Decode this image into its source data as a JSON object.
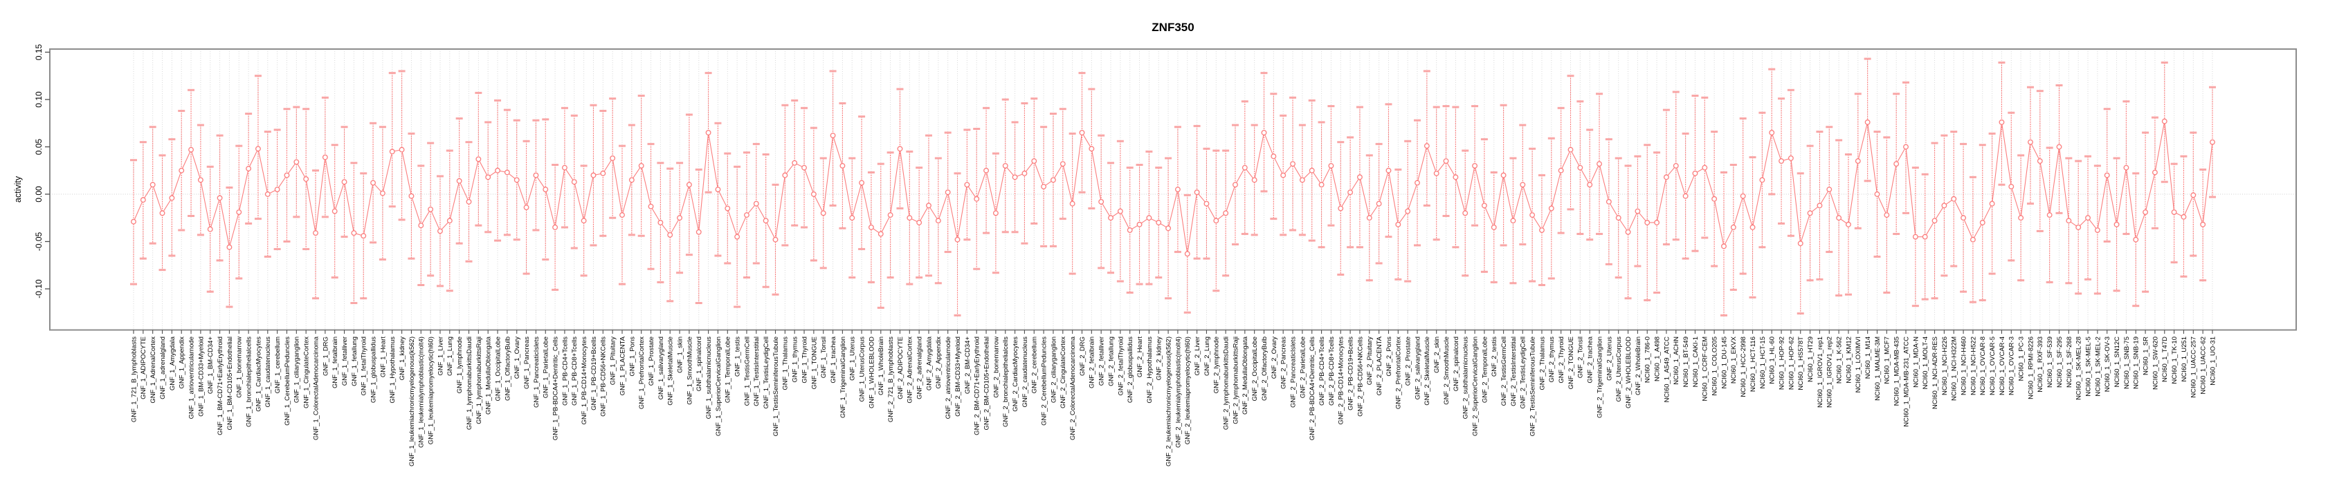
{
  "title": "ZNF350",
  "ylabel": "activity",
  "colors": {
    "series": "#FB7D7D",
    "cap": "#F9A6A6",
    "grid": "#D6D6D6",
    "zero_line": "#CFCFCF",
    "border": "#8C8C8C",
    "tick": "#4D4D4D",
    "text": "#000000",
    "background": "#FFFFFF"
  },
  "chart_data": {
    "type": "line",
    "subtype": "pointrange-errorbar",
    "title": "ZNF350",
    "xlabel": "",
    "ylabel": "activity",
    "legend": "none",
    "grid": "vertical-dotted-per-category, dotted-zero-line",
    "ylim": [
      -0.145,
      0.152
    ],
    "yticks": [
      0.15,
      0.1,
      0.05,
      0.0,
      -0.05,
      -0.1
    ],
    "ytick_labels": [
      "0.15",
      "0.10",
      "0.05",
      "0.00",
      "-0.05",
      "-0.10"
    ],
    "categories": [
      "GNF_1_721_B_lymphoblasts",
      "GNF_1_ADIPOCYTE",
      "GNF_1_AdrenalCortex",
      "GNF_1_adrenalgland",
      "GNF_1_Amygdala",
      "GNF_1_Appendix",
      "GNF_1_atrioventricularnode",
      "GNF_1_BM-CD33+Myeloid",
      "GNF_1_BM-CD34+",
      "GNF_1_BM-CD71+EarlyErythroid",
      "GNF_1_BM-CD105+Endothelial",
      "GNF_1_bonemarrow",
      "GNF_1_bronchialepithelialcells",
      "GNF_1_CardiacMyocytes",
      "GNF_1_caudatenucleus",
      "GNF_1_cerebellum",
      "GNF_1_CerebellumPeduncles",
      "GNF_1_ciliaryganglion",
      "GNF_1_CingulateCortex",
      "GNF_1_ColorectalAdenocarcinoma",
      "GNF_1_DRG",
      "GNF_1_fetalbrain",
      "GNF_1_fetalliver",
      "GNF_1_fetallung",
      "GNF_1_fetalThyroid",
      "GNF_1_globuspallidus",
      "GNF_1_Heart",
      "GNF_1_Hypothalamus",
      "GNF_1_kidney",
      "GNF_1_leukemiachronicmyelogenous(k562)",
      "GNF_1_leukemialymphoblastic(molt4)",
      "GNF_1_leukemiapromyelocytic(hl60)",
      "GNF_1_Liver",
      "GNF_1_Lung",
      "GNF_1_lymphnode",
      "GNF_1_lymphomaburkittsDaudi",
      "GNF_1_lymphomaburkittsRaji",
      "GNF_1_MedullaOblongata",
      "GNF_1_OccipitalLobe",
      "GNF_1_OlfactoryBulb",
      "GNF_1_Ovary",
      "GNF_1_Pancreas",
      "GNF_1_PancreaticIslets",
      "GNF_1_ParietalLobe",
      "GNF_1_PB-BDCA4+Dentritic_Cells",
      "GNF_1_PB-CD4+Tcells",
      "GNF_1_PB-CD8+Tcells",
      "GNF_1_PB-CD14+Monocytes",
      "GNF_1_PB-CD19+Bcells",
      "GNF_1_PB-CD56+NKCells",
      "GNF_1_Pituitary",
      "GNF_1_PLACENTA",
      "GNF_1_Pons",
      "GNF_1_PrefrontalCortex",
      "GNF_1_Prostate",
      "GNF_1_salivarygland",
      "GNF_1_SkeletalMuscle",
      "GNF_1_skin",
      "GNF_1_SmoothMuscle",
      "GNF_1_spinalcord",
      "GNF_1_subthalamicnucleus",
      "GNF_1_SuperiorCervicalGanglion",
      "GNF_1_TemporalLobe",
      "GNF_1_testis",
      "GNF_1_TestisGermCell",
      "GNF_1_TestisInterstitial",
      "GNF_1_TestisLeydigCell",
      "GNF_1_TestisSeminiferousTubule",
      "GNF_1_Thalamus",
      "GNF_1_thymus",
      "GNF_1_Thyroid",
      "GNF_1_TONGUE",
      "GNF_1_Tonsil",
      "GNF_1_trachea",
      "GNF_1_TrigeminalGanglion",
      "GNF_1_Uterus",
      "GNF_1_UterusCorpus",
      "GNF_1_WHOLEBLOOD",
      "GNF_1_WholeBrain",
      "GNF_2_721_B_lymphoblasts",
      "GNF_2_ADIPOCYTE",
      "GNF_2_AdrenalCortex",
      "GNF_2_adrenalgland",
      "GNF_2_Amygdala",
      "GNF_2_Appendix",
      "GNF_2_atrioventricularnode",
      "GNF_2_BM-CD33+Myeloid",
      "GNF_2_BM-CD34+",
      "GNF_2_BM-CD71+EarlyErythroid",
      "GNF_2_BM-CD105+Endothelial",
      "GNF_2_bonemarrow",
      "GNF_2_bronchialepithelialcells",
      "GNF_2_CardiacMyocytes",
      "GNF_2_caudatenucleus",
      "GNF_2_cerebellum",
      "GNF_2_CerebellumPeduncles",
      "GNF_2_ciliaryganglion",
      "GNF_2_CingulateCortex",
      "GNF_2_ColorectalAdenocarcinoma",
      "GNF_2_DRG",
      "GNF_2_fetalbrain",
      "GNF_2_fetalliver",
      "GNF_2_fetallung",
      "GNF_2_fetalThyroid",
      "GNF_2_globuspallidus",
      "GNF_2_Heart",
      "GNF_2_Hypothalamus",
      "GNF_2_kidney",
      "GNF_2_leukemiachronicmyelogenous(k562)",
      "GNF_2_leukemialymphoblastic(molt4)",
      "GNF_2_leukemiapromyelocytic(hl60)",
      "GNF_2_Liver",
      "GNF_2_Lung",
      "GNF_2_lymphnode",
      "GNF_2_lymphomaburkittsDaudi",
      "GNF_2_lymphomaburkittsRaji",
      "GNF_2_MedullaOblongata",
      "GNF_2_OccipitalLobe",
      "GNF_2_OlfactoryBulb",
      "GNF_2_Ovary",
      "GNF_2_Pancreas",
      "GNF_2_PancreaticIslets",
      "GNF_2_ParietalLobe",
      "GNF_2_PB-BDCA4+Dentritic_Cells",
      "GNF_2_PB-CD4+Tcells",
      "GNF_2_PB-CD8+Tcells",
      "GNF_2_PB-CD14+Monocytes",
      "GNF_2_PB-CD19+Bcells",
      "GNF_2_PB-CD56+NKCells",
      "GNF_2_Pituitary",
      "GNF_2_PLACENTA",
      "GNF_2_Pons",
      "GNF_2_PrefrontalCortex",
      "GNF_2_Prostate",
      "GNF_2_salivarygland",
      "GNF_2_SkeletalMuscle",
      "GNF_2_skin",
      "GNF_2_SmoothMuscle",
      "GNF_2_spinalcord",
      "GNF_2_subthalamicnucleus",
      "GNF_2_SuperiorCervicalGanglion",
      "GNF_2_TemporalLobe",
      "GNF_2_testis",
      "GNF_2_TestisGermCell",
      "GNF_2_TestisInterstitial",
      "GNF_2_TestisLeydigCell",
      "GNF_2_TestisSeminiferousTubule",
      "GNF_2_Thalamus",
      "GNF_2_thymus",
      "GNF_2_Thyroid",
      "GNF_2_TONGUE",
      "GNF_2_Tonsil",
      "GNF_2_trachea",
      "GNF_2_TrigeminalGanglion",
      "GNF_2_Uterus",
      "GNF_2_UterusCorpus",
      "GNF_2_WHOLEBLOOD",
      "GNF_2_WholeBrain",
      "NCI60_1_786-0",
      "NCI60_1_A498",
      "NCI60_1_A549_ATCC",
      "NCI60_1_ACHN",
      "NCI60_1_BT-549",
      "NCI60_1_CAKI-1",
      "NCI60_1_CCRF-CEM",
      "NCI60_1_COLO205",
      "NCI60_1_DU-145",
      "NCI60_1_EKVX",
      "NCI60_1_HCC-2998",
      "NCI60_1_HCT-116",
      "NCI60_1_HCT-15",
      "NCI60_1_HL-60",
      "NCI60_1_HOP-92",
      "NCI60_1_HOP-62",
      "NCI60_1_HS578T",
      "NCI60_1_HT29",
      "NCI60_1_IGROV1_rep1",
      "NCI60_1_IGROV1_rep2",
      "NCI60_1_K-562",
      "NCI60_1_KM12",
      "NCI60_1_LOXIMVI",
      "NCI60_1_M14",
      "NCI60_1_MALME-3M",
      "NCI60_1_MCF7",
      "NCI60_1_MDA-MB-435",
      "NCI60_1_MDA-MB-231_ATCC",
      "NCI60_1_MDA-N",
      "NCI60_1_MOLT-4",
      "NCI60_1_NCI-ADR-RES",
      "NCI60_1_NCI-H226",
      "NCI60_1_NCI-H322M",
      "NCI60_1_NCI-H460",
      "NCI60_1_NCI-H522",
      "NCI60_1_OVCAR-8",
      "NCI60_1_OVCAR-5",
      "NCI60_1_OVCAR-4",
      "NCI60_1_OVCAR-3",
      "NCI60_1_PC-3",
      "NCI60_1_RPMI-8226",
      "NCI60_1_RXF-393",
      "NCI60_1_SF-539",
      "NCI60_1_SF-295",
      "NCI60_1_SF-268",
      "NCI60_1_SK-MEL-28",
      "NCI60_1_SK-MEL-5",
      "NCI60_1_SK-MEL-2",
      "NCI60_1_SK-OV-3",
      "NCI60_1_SN12C",
      "NCI60_1_SNB-75",
      "NCI60_1_SNB-19",
      "NCI60_1_SR",
      "NCI60_1_SW-620",
      "NCI60_1_T47D",
      "NCI60_1_TK-10",
      "NCI60_1_U251",
      "NCI60_1_UACC-257",
      "NCI60_1_UACC-62",
      "NCI60_1_UO-31"
    ],
    "series": [
      {
        "name": "activity",
        "values": [
          -0.029,
          -0.006,
          0.01,
          -0.02,
          -0.004,
          0.025,
          0.047,
          0.015,
          -0.037,
          -0.004,
          -0.056,
          -0.019,
          0.027,
          0.048,
          0.0,
          0.005,
          0.02,
          0.034,
          0.016,
          -0.041,
          0.039,
          -0.018,
          0.013,
          -0.041,
          -0.044,
          0.012,
          0.001,
          0.045,
          0.047,
          -0.002,
          -0.033,
          -0.016,
          -0.039,
          -0.028,
          0.014,
          -0.008,
          0.037,
          0.018,
          0.025,
          0.023,
          0.015,
          -0.014,
          0.02,
          0.005,
          -0.035,
          0.028,
          0.013,
          -0.028,
          0.02,
          0.022,
          0.038,
          -0.022,
          0.015,
          0.03,
          -0.013,
          -0.03,
          -0.043,
          -0.025,
          0.01,
          -0.04,
          0.065,
          0.005,
          -0.015,
          -0.045,
          -0.022,
          -0.01,
          -0.028,
          -0.048,
          0.02,
          0.033,
          0.028,
          0.0,
          -0.02,
          0.062,
          0.03,
          -0.025,
          0.012,
          -0.035,
          -0.042,
          -0.022,
          0.048,
          -0.025,
          -0.03,
          -0.012,
          -0.028,
          0.002,
          -0.048,
          0.01,
          -0.005,
          0.025,
          -0.02,
          0.03,
          0.018,
          0.022,
          0.035,
          0.008,
          0.015,
          0.032,
          -0.01,
          0.065,
          0.048,
          -0.008,
          -0.025,
          -0.018,
          -0.038,
          -0.032,
          -0.025,
          -0.03,
          -0.036,
          0.005,
          -0.063,
          0.002,
          -0.01,
          -0.028,
          -0.02,
          0.01,
          0.028,
          0.015,
          0.065,
          0.04,
          0.02,
          0.032,
          0.015,
          0.025,
          0.01,
          0.03,
          -0.015,
          0.002,
          0.018,
          -0.025,
          -0.01,
          0.025,
          -0.032,
          -0.018,
          0.012,
          0.051,
          0.022,
          0.035,
          0.018,
          -0.02,
          0.03,
          -0.012,
          -0.035,
          0.02,
          -0.028,
          0.01,
          -0.022,
          -0.038,
          -0.015,
          0.025,
          0.047,
          0.028,
          0.01,
          0.032,
          -0.008,
          -0.025,
          -0.04,
          -0.018,
          -0.03,
          -0.03,
          0.018,
          0.03,
          -0.002,
          0.022,
          0.028,
          -0.005,
          -0.055,
          -0.035,
          -0.002,
          -0.035,
          0.015,
          0.065,
          0.035,
          0.038,
          -0.052,
          -0.02,
          -0.012,
          0.005,
          -0.025,
          -0.032,
          0.035,
          0.076,
          0.0,
          -0.022,
          0.032,
          0.05,
          -0.045,
          -0.045,
          -0.028,
          -0.012,
          -0.005,
          -0.025,
          -0.048,
          -0.03,
          -0.01,
          0.076,
          0.008,
          -0.025,
          0.055,
          0.035,
          -0.022,
          0.05,
          -0.028,
          -0.035,
          -0.025,
          -0.038,
          0.02,
          -0.032,
          0.028,
          -0.048,
          -0.019,
          0.023,
          0.077,
          -0.019,
          -0.024,
          -0.001,
          -0.032,
          0.055
        ],
        "error_low": [
          -0.095,
          -0.068,
          -0.052,
          -0.08,
          -0.065,
          -0.038,
          -0.023,
          -0.043,
          -0.103,
          -0.07,
          -0.119,
          -0.089,
          -0.031,
          -0.026,
          -0.066,
          -0.058,
          -0.05,
          -0.024,
          -0.058,
          -0.11,
          -0.024,
          -0.088,
          -0.045,
          -0.115,
          -0.11,
          -0.051,
          -0.069,
          -0.013,
          -0.027,
          -0.068,
          -0.096,
          -0.086,
          -0.097,
          -0.102,
          -0.052,
          -0.071,
          -0.033,
          -0.04,
          -0.049,
          -0.043,
          -0.048,
          -0.084,
          -0.038,
          -0.069,
          -0.101,
          -0.035,
          -0.057,
          -0.086,
          -0.054,
          -0.044,
          -0.025,
          -0.095,
          -0.043,
          -0.044,
          -0.079,
          -0.093,
          -0.113,
          -0.083,
          -0.064,
          -0.115,
          0.002,
          -0.065,
          -0.073,
          -0.119,
          -0.088,
          -0.073,
          -0.098,
          -0.106,
          -0.054,
          -0.033,
          -0.035,
          -0.07,
          -0.078,
          -0.012,
          -0.036,
          -0.088,
          -0.058,
          -0.093,
          -0.12,
          -0.088,
          -0.015,
          -0.095,
          -0.088,
          -0.086,
          -0.094,
          -0.061,
          -0.128,
          -0.048,
          -0.079,
          -0.041,
          -0.083,
          -0.04,
          -0.04,
          -0.052,
          -0.031,
          -0.055,
          -0.055,
          -0.026,
          -0.084,
          0.002,
          -0.015,
          -0.078,
          -0.083,
          -0.092,
          -0.104,
          -0.095,
          -0.095,
          -0.088,
          -0.11,
          -0.061,
          -0.125,
          -0.068,
          -0.068,
          -0.102,
          -0.086,
          -0.053,
          -0.042,
          -0.043,
          0.003,
          -0.026,
          -0.043,
          -0.038,
          -0.043,
          -0.049,
          -0.056,
          -0.033,
          -0.085,
          -0.056,
          -0.056,
          -0.091,
          -0.073,
          -0.045,
          -0.09,
          -0.092,
          -0.054,
          -0.012,
          -0.048,
          -0.023,
          -0.056,
          -0.086,
          -0.033,
          -0.082,
          -0.093,
          -0.054,
          -0.094,
          -0.053,
          -0.092,
          -0.096,
          -0.089,
          -0.041,
          -0.016,
          -0.042,
          -0.048,
          -0.042,
          -0.074,
          -0.088,
          -0.11,
          -0.076,
          -0.112,
          -0.104,
          -0.053,
          -0.048,
          -0.068,
          -0.06,
          -0.046,
          -0.076,
          -0.128,
          -0.101,
          -0.084,
          -0.109,
          -0.056,
          0.0,
          -0.031,
          -0.044,
          -0.126,
          -0.091,
          -0.09,
          -0.061,
          -0.107,
          -0.106,
          -0.036,
          0.014,
          -0.066,
          -0.104,
          -0.042,
          -0.02,
          -0.118,
          -0.111,
          -0.11,
          -0.086,
          -0.076,
          -0.103,
          -0.114,
          -0.112,
          -0.084,
          0.01,
          -0.07,
          -0.091,
          -0.01,
          -0.039,
          -0.093,
          -0.02,
          -0.094,
          -0.105,
          -0.09,
          -0.105,
          -0.05,
          -0.102,
          -0.042,
          -0.118,
          -0.103,
          -0.036,
          0.013,
          -0.072,
          -0.087,
          -0.065,
          -0.091,
          -0.003
        ],
        "error_high": [
          0.036,
          0.055,
          0.071,
          0.041,
          0.058,
          0.088,
          0.11,
          0.073,
          0.029,
          0.062,
          0.007,
          0.051,
          0.085,
          0.125,
          0.066,
          0.068,
          0.09,
          0.092,
          0.09,
          0.025,
          0.102,
          0.052,
          0.071,
          0.033,
          0.022,
          0.075,
          0.071,
          0.128,
          0.13,
          0.064,
          0.03,
          0.054,
          0.019,
          0.046,
          0.08,
          0.055,
          0.107,
          0.076,
          0.099,
          0.089,
          0.078,
          0.056,
          0.078,
          0.079,
          0.031,
          0.091,
          0.083,
          0.03,
          0.094,
          0.088,
          0.101,
          0.051,
          0.073,
          0.104,
          0.053,
          0.033,
          0.027,
          0.033,
          0.084,
          0.026,
          0.128,
          0.075,
          0.043,
          0.029,
          0.044,
          0.053,
          0.042,
          0.01,
          0.094,
          0.099,
          0.091,
          0.07,
          0.038,
          0.13,
          0.096,
          0.038,
          0.082,
          0.023,
          0.032,
          0.044,
          0.111,
          0.045,
          0.028,
          0.062,
          0.038,
          0.065,
          0.022,
          0.068,
          0.069,
          0.091,
          0.043,
          0.1,
          0.076,
          0.096,
          0.101,
          0.071,
          0.085,
          0.09,
          0.064,
          0.128,
          0.111,
          0.062,
          0.033,
          0.056,
          0.028,
          0.031,
          0.045,
          0.028,
          0.038,
          0.071,
          -0.001,
          0.072,
          0.048,
          0.046,
          0.046,
          0.073,
          0.098,
          0.073,
          0.128,
          0.106,
          0.083,
          0.102,
          0.073,
          0.099,
          0.076,
          0.093,
          0.055,
          0.06,
          0.092,
          0.041,
          0.053,
          0.095,
          0.026,
          0.056,
          0.078,
          0.13,
          0.092,
          0.093,
          0.092,
          0.046,
          0.093,
          0.058,
          0.023,
          0.094,
          0.038,
          0.073,
          0.048,
          0.02,
          0.059,
          0.091,
          0.125,
          0.098,
          0.068,
          0.106,
          0.058,
          0.038,
          0.03,
          0.04,
          0.052,
          0.044,
          0.089,
          0.108,
          0.064,
          0.104,
          0.102,
          0.066,
          0.023,
          0.031,
          0.08,
          0.039,
          0.086,
          0.132,
          0.101,
          0.11,
          0.022,
          0.051,
          0.066,
          0.071,
          0.057,
          0.042,
          0.106,
          0.143,
          0.066,
          0.06,
          0.106,
          0.118,
          0.028,
          0.021,
          0.054,
          0.062,
          0.066,
          0.053,
          0.018,
          0.052,
          0.064,
          0.139,
          0.086,
          0.041,
          0.113,
          0.109,
          0.049,
          0.115,
          0.038,
          0.035,
          0.04,
          0.03,
          0.09,
          0.038,
          0.098,
          0.022,
          0.065,
          0.081,
          0.139,
          0.032,
          0.04,
          0.065,
          0.026,
          0.113
        ]
      }
    ]
  }
}
